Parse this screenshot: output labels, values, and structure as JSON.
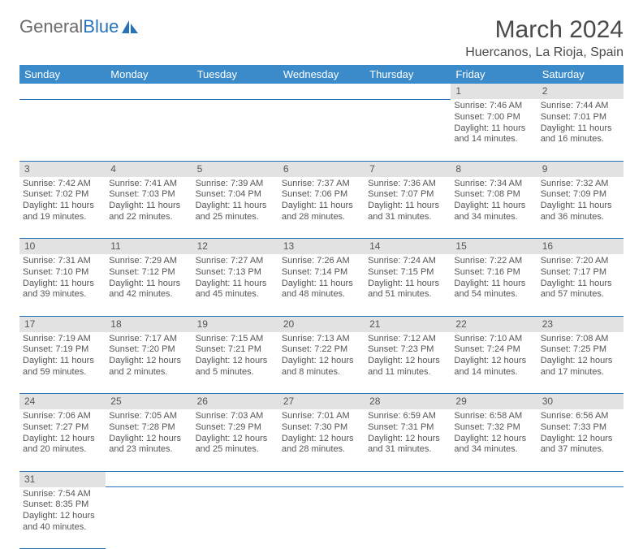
{
  "brand": {
    "part1": "General",
    "part2": "Blue"
  },
  "title": "March 2024",
  "location": "Huercanos, La Rioja, Spain",
  "colors": {
    "header_bg": "#3b8bca",
    "header_fg": "#ffffff",
    "daynum_bg": "#e2e2e2",
    "rule": "#2873b8",
    "text": "#555555",
    "brand_gray": "#6b6b6b",
    "brand_blue": "#2873b8"
  },
  "weekdays": [
    "Sunday",
    "Monday",
    "Tuesday",
    "Wednesday",
    "Thursday",
    "Friday",
    "Saturday"
  ],
  "weeks": [
    {
      "nums": [
        "",
        "",
        "",
        "",
        "",
        "1",
        "2"
      ],
      "cells": [
        null,
        null,
        null,
        null,
        null,
        {
          "sunrise": "Sunrise: 7:46 AM",
          "sunset": "Sunset: 7:00 PM",
          "day1": "Daylight: 11 hours",
          "day2": "and 14 minutes."
        },
        {
          "sunrise": "Sunrise: 7:44 AM",
          "sunset": "Sunset: 7:01 PM",
          "day1": "Daylight: 11 hours",
          "day2": "and 16 minutes."
        }
      ]
    },
    {
      "nums": [
        "3",
        "4",
        "5",
        "6",
        "7",
        "8",
        "9"
      ],
      "cells": [
        {
          "sunrise": "Sunrise: 7:42 AM",
          "sunset": "Sunset: 7:02 PM",
          "day1": "Daylight: 11 hours",
          "day2": "and 19 minutes."
        },
        {
          "sunrise": "Sunrise: 7:41 AM",
          "sunset": "Sunset: 7:03 PM",
          "day1": "Daylight: 11 hours",
          "day2": "and 22 minutes."
        },
        {
          "sunrise": "Sunrise: 7:39 AM",
          "sunset": "Sunset: 7:04 PM",
          "day1": "Daylight: 11 hours",
          "day2": "and 25 minutes."
        },
        {
          "sunrise": "Sunrise: 7:37 AM",
          "sunset": "Sunset: 7:06 PM",
          "day1": "Daylight: 11 hours",
          "day2": "and 28 minutes."
        },
        {
          "sunrise": "Sunrise: 7:36 AM",
          "sunset": "Sunset: 7:07 PM",
          "day1": "Daylight: 11 hours",
          "day2": "and 31 minutes."
        },
        {
          "sunrise": "Sunrise: 7:34 AM",
          "sunset": "Sunset: 7:08 PM",
          "day1": "Daylight: 11 hours",
          "day2": "and 34 minutes."
        },
        {
          "sunrise": "Sunrise: 7:32 AM",
          "sunset": "Sunset: 7:09 PM",
          "day1": "Daylight: 11 hours",
          "day2": "and 36 minutes."
        }
      ]
    },
    {
      "nums": [
        "10",
        "11",
        "12",
        "13",
        "14",
        "15",
        "16"
      ],
      "cells": [
        {
          "sunrise": "Sunrise: 7:31 AM",
          "sunset": "Sunset: 7:10 PM",
          "day1": "Daylight: 11 hours",
          "day2": "and 39 minutes."
        },
        {
          "sunrise": "Sunrise: 7:29 AM",
          "sunset": "Sunset: 7:12 PM",
          "day1": "Daylight: 11 hours",
          "day2": "and 42 minutes."
        },
        {
          "sunrise": "Sunrise: 7:27 AM",
          "sunset": "Sunset: 7:13 PM",
          "day1": "Daylight: 11 hours",
          "day2": "and 45 minutes."
        },
        {
          "sunrise": "Sunrise: 7:26 AM",
          "sunset": "Sunset: 7:14 PM",
          "day1": "Daylight: 11 hours",
          "day2": "and 48 minutes."
        },
        {
          "sunrise": "Sunrise: 7:24 AM",
          "sunset": "Sunset: 7:15 PM",
          "day1": "Daylight: 11 hours",
          "day2": "and 51 minutes."
        },
        {
          "sunrise": "Sunrise: 7:22 AM",
          "sunset": "Sunset: 7:16 PM",
          "day1": "Daylight: 11 hours",
          "day2": "and 54 minutes."
        },
        {
          "sunrise": "Sunrise: 7:20 AM",
          "sunset": "Sunset: 7:17 PM",
          "day1": "Daylight: 11 hours",
          "day2": "and 57 minutes."
        }
      ]
    },
    {
      "nums": [
        "17",
        "18",
        "19",
        "20",
        "21",
        "22",
        "23"
      ],
      "cells": [
        {
          "sunrise": "Sunrise: 7:19 AM",
          "sunset": "Sunset: 7:19 PM",
          "day1": "Daylight: 11 hours",
          "day2": "and 59 minutes."
        },
        {
          "sunrise": "Sunrise: 7:17 AM",
          "sunset": "Sunset: 7:20 PM",
          "day1": "Daylight: 12 hours",
          "day2": "and 2 minutes."
        },
        {
          "sunrise": "Sunrise: 7:15 AM",
          "sunset": "Sunset: 7:21 PM",
          "day1": "Daylight: 12 hours",
          "day2": "and 5 minutes."
        },
        {
          "sunrise": "Sunrise: 7:13 AM",
          "sunset": "Sunset: 7:22 PM",
          "day1": "Daylight: 12 hours",
          "day2": "and 8 minutes."
        },
        {
          "sunrise": "Sunrise: 7:12 AM",
          "sunset": "Sunset: 7:23 PM",
          "day1": "Daylight: 12 hours",
          "day2": "and 11 minutes."
        },
        {
          "sunrise": "Sunrise: 7:10 AM",
          "sunset": "Sunset: 7:24 PM",
          "day1": "Daylight: 12 hours",
          "day2": "and 14 minutes."
        },
        {
          "sunrise": "Sunrise: 7:08 AM",
          "sunset": "Sunset: 7:25 PM",
          "day1": "Daylight: 12 hours",
          "day2": "and 17 minutes."
        }
      ]
    },
    {
      "nums": [
        "24",
        "25",
        "26",
        "27",
        "28",
        "29",
        "30"
      ],
      "cells": [
        {
          "sunrise": "Sunrise: 7:06 AM",
          "sunset": "Sunset: 7:27 PM",
          "day1": "Daylight: 12 hours",
          "day2": "and 20 minutes."
        },
        {
          "sunrise": "Sunrise: 7:05 AM",
          "sunset": "Sunset: 7:28 PM",
          "day1": "Daylight: 12 hours",
          "day2": "and 23 minutes."
        },
        {
          "sunrise": "Sunrise: 7:03 AM",
          "sunset": "Sunset: 7:29 PM",
          "day1": "Daylight: 12 hours",
          "day2": "and 25 minutes."
        },
        {
          "sunrise": "Sunrise: 7:01 AM",
          "sunset": "Sunset: 7:30 PM",
          "day1": "Daylight: 12 hours",
          "day2": "and 28 minutes."
        },
        {
          "sunrise": "Sunrise: 6:59 AM",
          "sunset": "Sunset: 7:31 PM",
          "day1": "Daylight: 12 hours",
          "day2": "and 31 minutes."
        },
        {
          "sunrise": "Sunrise: 6:58 AM",
          "sunset": "Sunset: 7:32 PM",
          "day1": "Daylight: 12 hours",
          "day2": "and 34 minutes."
        },
        {
          "sunrise": "Sunrise: 6:56 AM",
          "sunset": "Sunset: 7:33 PM",
          "day1": "Daylight: 12 hours",
          "day2": "and 37 minutes."
        }
      ]
    },
    {
      "nums": [
        "31",
        "",
        "",
        "",
        "",
        "",
        ""
      ],
      "cells": [
        {
          "sunrise": "Sunrise: 7:54 AM",
          "sunset": "Sunset: 8:35 PM",
          "day1": "Daylight: 12 hours",
          "day2": "and 40 minutes."
        },
        null,
        null,
        null,
        null,
        null,
        null
      ]
    }
  ]
}
